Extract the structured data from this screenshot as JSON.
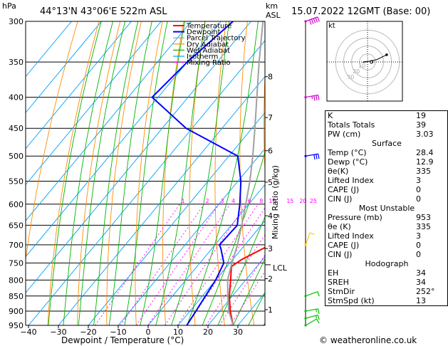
{
  "header": {
    "pressure_unit": "hPa",
    "location": "44°13'N  43°06'E  522m  ASL",
    "km_unit": "km",
    "asl": "ASL",
    "datetime": "15.07.2022  12GMT  (Base: 00)"
  },
  "legend": [
    "Temperature",
    "Dewpoint",
    "Parcel Trajectory",
    "Dry Adiabat",
    "Wet Adiabat",
    "Isotherm",
    "Mixing Ratio"
  ],
  "colors": {
    "temperature": "#ff0000",
    "dewpoint": "#0000ff",
    "parcel": "#a0a0a0",
    "dry_adiabat": "#ff8c00",
    "wet_adiabat": "#00b400",
    "isotherm": "#00a0ff",
    "mixing_ratio": "#ff00ff",
    "wind_upper": "#cc00cc",
    "wind_mid": "#0000ff",
    "wind_low": "#ffcc00",
    "wind_surface": "#00c000"
  },
  "mixing_ratio_label": "Mixing Ratio (g/kg)",
  "lcl_label": "LCL",
  "hodograph_label": "kt",
  "watermark": "© weatheronline.co.uk",
  "chart_data": {
    "type": "line",
    "xlabel": "Dewpoint / Temperature (°C)",
    "ylabel": "hPa",
    "pressure_levels": [
      300,
      350,
      400,
      450,
      500,
      550,
      600,
      650,
      700,
      750,
      800,
      850,
      900,
      950
    ],
    "temperature_ticks": [
      -40,
      -30,
      -20,
      -10,
      0,
      10,
      20,
      30
    ],
    "xlim": [
      -40,
      40
    ],
    "ylim": [
      950,
      300
    ],
    "altitude_km": [
      {
        "km": "8",
        "p": 370
      },
      {
        "km": "7",
        "p": 432
      },
      {
        "km": "6",
        "p": 490
      },
      {
        "km": "5",
        "p": 552
      },
      {
        "km": "4",
        "p": 627
      },
      {
        "km": "3",
        "p": 710
      },
      {
        "km": "2",
        "p": 796
      },
      {
        "km": "1",
        "p": 895
      }
    ],
    "lcl_pressure": 755,
    "mixing_ratio_values": [
      "1",
      "2",
      "3",
      "4",
      "6",
      "8",
      "10",
      "15",
      "20",
      "25"
    ],
    "series": [
      {
        "name": "Temperature",
        "points": [
          [
            950,
            28.4
          ],
          [
            900,
            23.5
          ],
          [
            850,
            19
          ],
          [
            800,
            15
          ],
          [
            760,
            11.5
          ],
          [
            740,
            13
          ],
          [
            700,
            18.5
          ],
          [
            650,
            15
          ],
          [
            600,
            10
          ],
          [
            550,
            5
          ],
          [
            500,
            -2
          ],
          [
            450,
            -8
          ],
          [
            400,
            -16
          ],
          [
            350,
            -24
          ]
        ]
      },
      {
        "name": "Dewpoint",
        "points": [
          [
            950,
            12.9
          ],
          [
            900,
            12
          ],
          [
            850,
            11
          ],
          [
            800,
            10
          ],
          [
            750,
            8
          ],
          [
            710,
            3
          ],
          [
            700,
            1.5
          ],
          [
            650,
            2
          ],
          [
            600,
            -3
          ],
          [
            550,
            -9
          ],
          [
            500,
            -17
          ],
          [
            450,
            -42
          ],
          [
            400,
            -62
          ],
          [
            350,
            -60
          ],
          [
            300,
            -56
          ]
        ]
      },
      {
        "name": "Parcel Trajectory",
        "points": [
          [
            950,
            28.4
          ],
          [
            900,
            23
          ],
          [
            850,
            18.5
          ],
          [
            800,
            14
          ],
          [
            755,
            11
          ],
          [
            700,
            7.5
          ],
          [
            650,
            3.5
          ],
          [
            600,
            -1
          ],
          [
            550,
            -6
          ],
          [
            500,
            -12
          ],
          [
            450,
            -19
          ],
          [
            400,
            -27
          ],
          [
            350,
            -36
          ],
          [
            300,
            -46
          ]
        ]
      }
    ]
  },
  "hodograph": {
    "rings": [
      10,
      20,
      30,
      40
    ],
    "ring_labels": [
      "10",
      "20",
      "30"
    ],
    "points": [
      [
        0,
        0
      ],
      [
        -3,
        0.5
      ],
      [
        -6,
        -0.5
      ],
      [
        3,
        1
      ],
      [
        12,
        3
      ],
      [
        24,
        9
      ]
    ],
    "storm_motion": [
      5,
      0
    ]
  },
  "wind_barbs": [
    {
      "p": 300,
      "group": "upper",
      "dir": 250,
      "spd": 50
    },
    {
      "p": 400,
      "group": "upper",
      "dir": 260,
      "spd": 35
    },
    {
      "p": 500,
      "group": "mid",
      "dir": 260,
      "spd": 30
    },
    {
      "p": 700,
      "group": "low",
      "dir": 200,
      "spd": 10
    },
    {
      "p": 850,
      "group": "surface",
      "dir": 250,
      "spd": 10
    },
    {
      "p": 900,
      "group": "surface",
      "dir": 260,
      "spd": 15
    },
    {
      "p": 925,
      "group": "surface",
      "dir": 255,
      "spd": 15
    },
    {
      "p": 950,
      "group": "surface",
      "dir": 240,
      "spd": 10
    }
  ],
  "indices": [
    {
      "type": "plain",
      "rows": [
        [
          "K",
          "19"
        ],
        [
          "Totals Totals",
          "39"
        ],
        [
          "PW (cm)",
          "3.03"
        ]
      ]
    },
    {
      "type": "section",
      "title": "Surface",
      "rows": [
        [
          "Temp (°C)",
          "28.4"
        ],
        [
          "Dewp (°C)",
          "12.9"
        ],
        [
          "θe(K)",
          "335"
        ],
        [
          "Lifted Index",
          "3"
        ],
        [
          "CAPE (J)",
          "0"
        ],
        [
          "CIN (J)",
          "0"
        ]
      ]
    },
    {
      "type": "section",
      "title": "Most Unstable",
      "rows": [
        [
          "Pressure (mb)",
          "953"
        ],
        [
          "θe (K)",
          "335"
        ],
        [
          "Lifted Index",
          "3"
        ],
        [
          "CAPE (J)",
          "0"
        ],
        [
          "CIN (J)",
          "0"
        ]
      ]
    },
    {
      "type": "section",
      "title": "Hodograph",
      "rows": [
        [
          "EH",
          "34"
        ],
        [
          "SREH",
          "34"
        ],
        [
          "StmDir",
          "252°"
        ],
        [
          "StmSpd (kt)",
          "13"
        ]
      ]
    }
  ]
}
